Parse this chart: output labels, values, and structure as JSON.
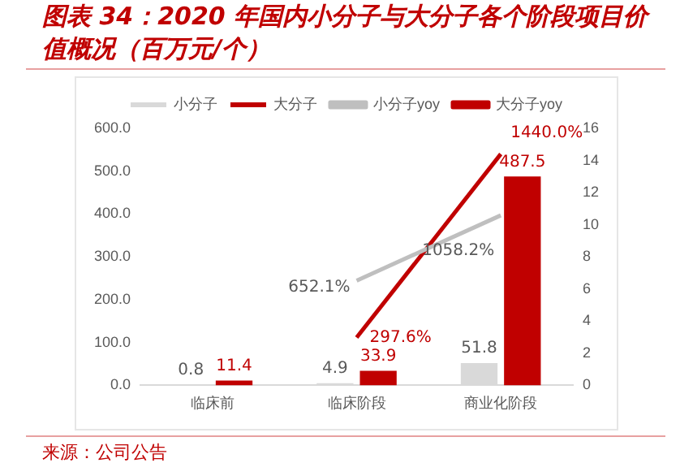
{
  "chart_data": {
    "type": "bar",
    "title": "图表 34：2020 年国内小分子与大分子各个阶段项目价值概况（百万元/个）",
    "categories": [
      "临床前",
      "临床阶段",
      "商业化阶段"
    ],
    "series": [
      {
        "name": "小分子",
        "color": "#d9d9d9",
        "values": [
          0.8,
          4.9,
          51.8
        ],
        "value_labels": [
          "0.8",
          "4.9",
          "51.8"
        ]
      },
      {
        "name": "大分子",
        "color": "#c00000",
        "values": [
          11.4,
          33.9,
          487.5
        ],
        "value_labels": [
          "11.4",
          "33.9",
          "487.5"
        ]
      },
      {
        "name": "小分子yoy",
        "type": "line",
        "axis": "y2",
        "color": "#bfbfbf",
        "values": [
          null,
          6.521,
          10.582
        ],
        "value_labels": [
          null,
          "652.1%",
          "1058.2%"
        ]
      },
      {
        "name": "大分子yoy",
        "type": "line",
        "axis": "y2",
        "color": "#c00000",
        "values": [
          null,
          2.976,
          14.4
        ],
        "value_labels": [
          null,
          "297.6%",
          "1440.0%"
        ]
      }
    ],
    "ylim": [
      0,
      600
    ],
    "yticks": [
      {
        "value": 0,
        "label": "0.0"
      },
      {
        "value": 100,
        "label": "100.0"
      },
      {
        "value": 200,
        "label": "200.0"
      },
      {
        "value": 300,
        "label": "300.0"
      },
      {
        "value": 400,
        "label": "400.0"
      },
      {
        "value": 500,
        "label": "500.0"
      },
      {
        "value": 600,
        "label": "600.0"
      }
    ],
    "y2lim": [
      0,
      16
    ],
    "y2ticks": [
      0,
      2,
      4,
      6,
      8,
      10,
      12,
      14,
      16
    ],
    "grid": false,
    "legend": "top",
    "marker": "none",
    "annotations": [
      "来源：公司公告"
    ]
  }
}
